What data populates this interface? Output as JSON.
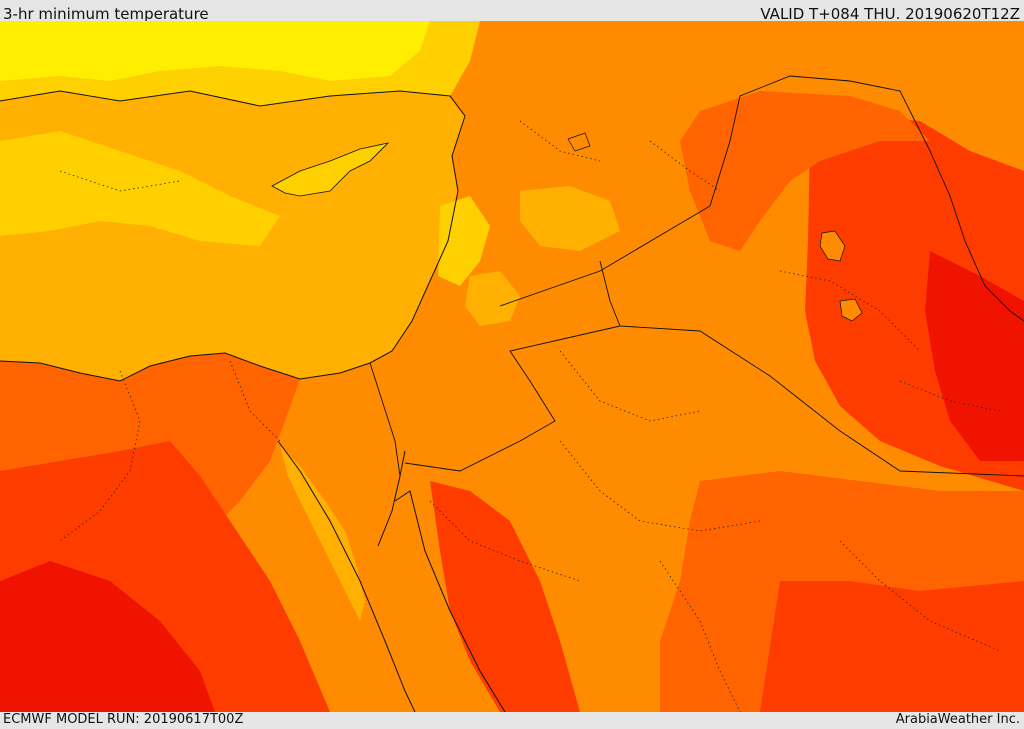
{
  "header": {
    "title": "3-hr minimum temperature",
    "valid": "VALID T+084 THU. 20190620T12Z"
  },
  "footer": {
    "model_run": "ECMWF MODEL RUN: 20190617T00Z",
    "credit": "ArabiaWeather Inc."
  },
  "palette": {
    "yellow": "#ffee00",
    "gold": "#ffd000",
    "light_orange": "#ffb000",
    "orange": "#ff8c00",
    "dark_orange": "#ff6400",
    "red_orange": "#ff3c00",
    "red": "#f01400",
    "border": "#111111"
  }
}
